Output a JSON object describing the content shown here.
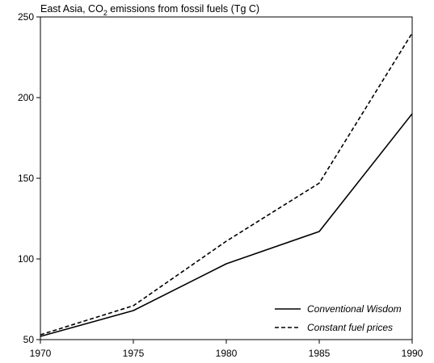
{
  "chart_data": {
    "type": "line",
    "title": "East Asia, CO2 emissions from fossil fuels (Tg C)",
    "title_parts": {
      "prefix": "East Asia, CO",
      "subscript": "2",
      "suffix": " emissions from fossil fuels (Tg C)"
    },
    "xlabel": "",
    "ylabel": "",
    "xlim": [
      1970,
      1990
    ],
    "ylim": [
      50,
      250
    ],
    "x_ticks": [
      1970,
      1975,
      1980,
      1985,
      1990
    ],
    "y_ticks": [
      50,
      100,
      150,
      200,
      250
    ],
    "grid": false,
    "legend_position": "bottom-right",
    "series": [
      {
        "name": "Conventional Wisdom",
        "line_style": "solid",
        "color": "#000000",
        "x": [
          1970,
          1975,
          1980,
          1985,
          1990
        ],
        "values": [
          52,
          68,
          97,
          117,
          190
        ]
      },
      {
        "name": "Constant fuel prices",
        "line_style": "dashed",
        "color": "#000000",
        "x": [
          1970,
          1975,
          1980,
          1985,
          1990
        ],
        "values": [
          53,
          71,
          111,
          147,
          240
        ]
      }
    ]
  }
}
